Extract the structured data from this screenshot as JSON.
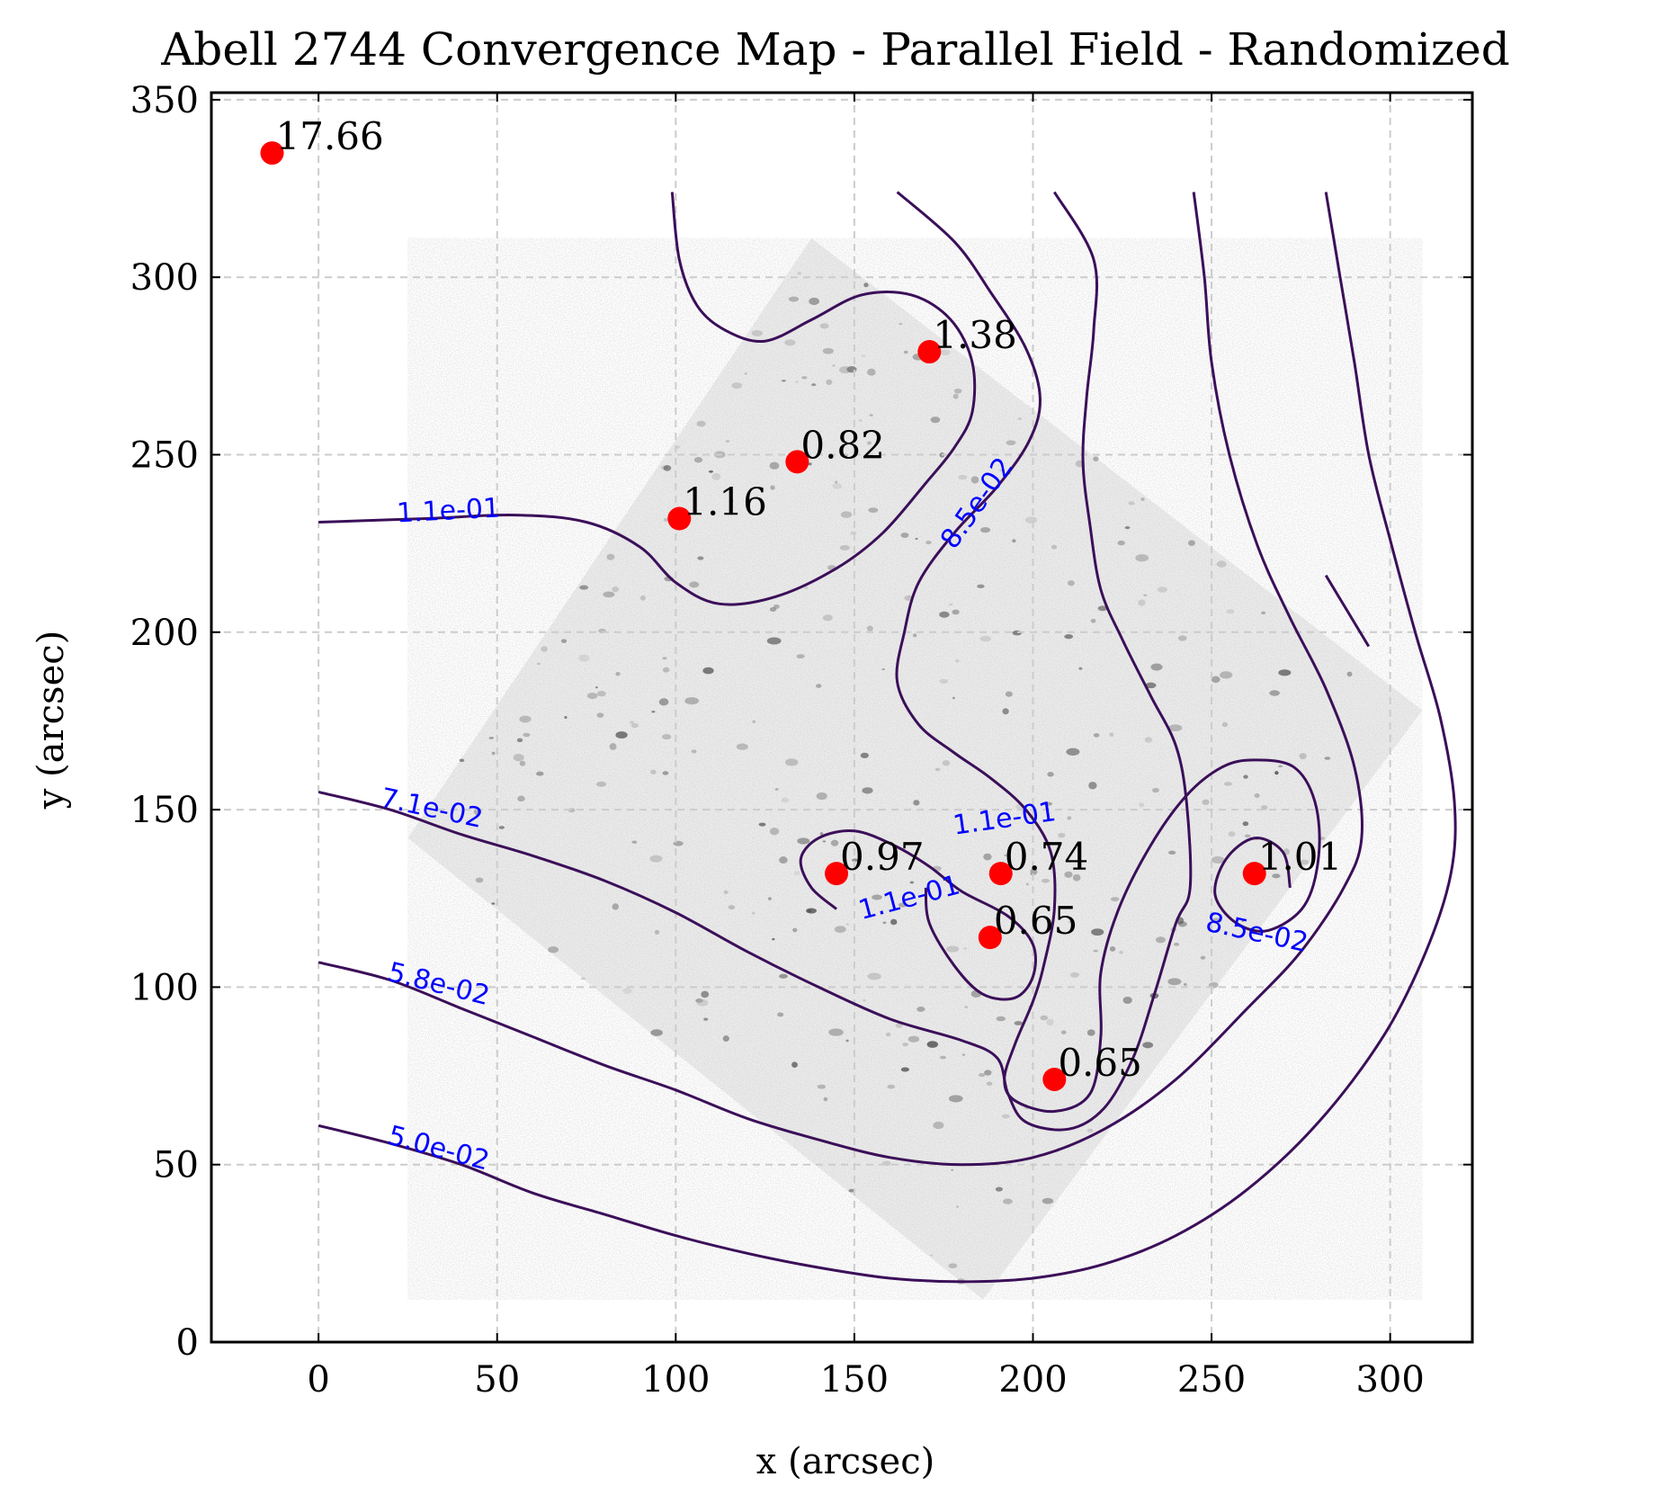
{
  "chart_data": {
    "type": "contour",
    "title": "Abell 2744 Convergence Map - Parallel Field - Randomized",
    "xlabel": "x (arcsec)",
    "ylabel": "y (arcsec)",
    "xlim": [
      -30,
      323
    ],
    "ylim": [
      0,
      352
    ],
    "xticks": [
      0,
      50,
      100,
      150,
      200,
      250,
      300
    ],
    "yticks": [
      0,
      50,
      100,
      150,
      200,
      250,
      300,
      350
    ],
    "grid": true,
    "background": "Hubble field image (grayscale), rotated square footprint",
    "colors": {
      "contour": "#3b0f59",
      "contour_label": "#0000ff",
      "point": "#ff0000",
      "grid": "#cccccc"
    },
    "points": [
      {
        "x": -13,
        "y": 335,
        "label": "17.66"
      },
      {
        "x": 171,
        "y": 279,
        "label": "1.38"
      },
      {
        "x": 134,
        "y": 248,
        "label": "0.82"
      },
      {
        "x": 101,
        "y": 232,
        "label": "1.16"
      },
      {
        "x": 145,
        "y": 132,
        "label": "0.97"
      },
      {
        "x": 191,
        "y": 132,
        "label": "0.74"
      },
      {
        "x": 188,
        "y": 114,
        "label": "0.65"
      },
      {
        "x": 262,
        "y": 132,
        "label": "1.01"
      },
      {
        "x": 206,
        "y": 74,
        "label": "0.65"
      }
    ],
    "contours": [
      {
        "level": "1.1e-01",
        "path": [
          [
            0,
            231
          ],
          [
            30,
            232
          ],
          [
            55,
            233
          ],
          [
            75,
            231
          ],
          [
            90,
            224
          ],
          [
            100,
            214
          ],
          [
            112,
            208
          ],
          [
            128,
            210
          ],
          [
            145,
            218
          ],
          [
            158,
            228
          ],
          [
            170,
            242
          ],
          [
            178,
            252
          ],
          [
            183,
            262
          ],
          [
            183,
            276
          ],
          [
            177,
            288
          ],
          [
            166,
            295
          ],
          [
            152,
            295
          ],
          [
            138,
            288
          ],
          [
            125,
            282
          ],
          [
            114,
            285
          ],
          [
            106,
            292
          ],
          [
            101,
            305
          ],
          [
            99,
            324
          ]
        ]
      },
      {
        "level": "1.1e-01",
        "path": [
          [
            145,
            122
          ],
          [
            138,
            128
          ],
          [
            135,
            136
          ],
          [
            140,
            142
          ],
          [
            150,
            144
          ],
          [
            161,
            140
          ],
          [
            171,
            134
          ],
          [
            180,
            127
          ],
          [
            193,
            120
          ],
          [
            200,
            112
          ],
          [
            200,
            103
          ],
          [
            195,
            97
          ],
          [
            186,
            98
          ],
          [
            178,
            106
          ],
          [
            171,
            118
          ],
          [
            170,
            128
          ]
        ]
      },
      {
        "level": "8.5e-02",
        "path": [
          [
            162,
            324
          ],
          [
            178,
            310
          ],
          [
            188,
            296
          ],
          [
            198,
            280
          ],
          [
            202,
            266
          ],
          [
            199,
            254
          ],
          [
            190,
            241
          ],
          [
            178,
            228
          ],
          [
            168,
            214
          ],
          [
            164,
            200
          ],
          [
            162,
            186
          ],
          [
            168,
            174
          ],
          [
            178,
            166
          ],
          [
            188,
            159
          ],
          [
            198,
            150
          ],
          [
            205,
            138
          ],
          [
            206,
            122
          ],
          [
            203,
            106
          ],
          [
            200,
            96
          ],
          [
            195,
            84
          ],
          [
            192,
            74
          ],
          [
            195,
            68
          ],
          [
            206,
            65
          ],
          [
            216,
            70
          ],
          [
            219,
            86
          ],
          [
            219,
            104
          ],
          [
            224,
            122
          ],
          [
            233,
            140
          ],
          [
            243,
            154
          ],
          [
            253,
            162
          ],
          [
            262,
            164
          ],
          [
            273,
            162
          ],
          [
            279,
            152
          ],
          [
            280,
            137
          ],
          [
            276,
            123
          ],
          [
            266,
            116
          ],
          [
            257,
            118
          ],
          [
            251,
            126
          ],
          [
            254,
            136
          ],
          [
            262,
            142
          ],
          [
            270,
            138
          ],
          [
            272,
            128
          ]
        ]
      },
      {
        "level": "7.1e-02",
        "path": [
          [
            0,
            155
          ],
          [
            20,
            150
          ],
          [
            40,
            143
          ],
          [
            60,
            137
          ],
          [
            80,
            130
          ],
          [
            100,
            121
          ],
          [
            120,
            110
          ],
          [
            140,
            100
          ],
          [
            160,
            91
          ],
          [
            180,
            85
          ],
          [
            190,
            80
          ],
          [
            193,
            70
          ],
          [
            198,
            62
          ],
          [
            210,
            60
          ],
          [
            220,
            66
          ],
          [
            228,
            80
          ],
          [
            234,
            98
          ],
          [
            240,
            118
          ],
          [
            244,
            128
          ],
          [
            243,
            152
          ],
          [
            240,
            168
          ],
          [
            233,
            182
          ],
          [
            225,
            198
          ],
          [
            219,
            212
          ],
          [
            216,
            230
          ],
          [
            214,
            248
          ],
          [
            215,
            266
          ],
          [
            217,
            285
          ],
          [
            217,
            305
          ],
          [
            206,
            324
          ]
        ]
      },
      {
        "level": "5.8e-02",
        "path": [
          [
            0,
            107
          ],
          [
            20,
            102
          ],
          [
            40,
            94
          ],
          [
            60,
            86
          ],
          [
            80,
            78
          ],
          [
            100,
            71
          ],
          [
            120,
            63
          ],
          [
            140,
            57
          ],
          [
            160,
            52
          ],
          [
            180,
            50
          ],
          [
            200,
            52
          ],
          [
            220,
            60
          ],
          [
            240,
            74
          ],
          [
            260,
            94
          ],
          [
            275,
            110
          ],
          [
            287,
            128
          ],
          [
            292,
            142
          ],
          [
            290,
            162
          ],
          [
            282,
            184
          ],
          [
            272,
            204
          ],
          [
            263,
            224
          ],
          [
            255,
            250
          ],
          [
            250,
            276
          ],
          [
            248,
            300
          ],
          [
            245,
            324
          ]
        ]
      },
      {
        "level": "5.0e-02",
        "path": [
          [
            0,
            61
          ],
          [
            20,
            56
          ],
          [
            40,
            50
          ],
          [
            60,
            42
          ],
          [
            80,
            36
          ],
          [
            100,
            30
          ],
          [
            120,
            25
          ],
          [
            140,
            21
          ],
          [
            160,
            18
          ],
          [
            180,
            17
          ],
          [
            200,
            18
          ],
          [
            220,
            22
          ],
          [
            240,
            30
          ],
          [
            260,
            43
          ],
          [
            280,
            62
          ],
          [
            298,
            86
          ],
          [
            310,
            110
          ],
          [
            317,
            132
          ],
          [
            318,
            152
          ],
          [
            314,
            176
          ],
          [
            307,
            200
          ],
          [
            300,
            226
          ],
          [
            294,
            250
          ],
          [
            290,
            276
          ],
          [
            286,
            300
          ],
          [
            282,
            324
          ]
        ]
      },
      {
        "level": "8.5e-02",
        "path": [
          [
            294,
            196
          ],
          [
            288,
            206
          ],
          [
            282,
            216
          ]
        ]
      }
    ],
    "contour_labels": [
      {
        "text": "1.1e-01",
        "x": 22,
        "y": 231,
        "angle": -3
      },
      {
        "text": "8.5e-02",
        "x": 178,
        "y": 223,
        "angle": -55
      },
      {
        "text": "1.1e-01",
        "x": 178,
        "y": 143,
        "angle": -8
      },
      {
        "text": "1.1e-01",
        "x": 152,
        "y": 119,
        "angle": -15
      },
      {
        "text": "8.5e-02",
        "x": 248,
        "y": 116,
        "angle": 12
      },
      {
        "text": "7.1e-02",
        "x": 17,
        "y": 151,
        "angle": 12
      },
      {
        "text": "5.8e-02",
        "x": 19,
        "y": 102,
        "angle": 14
      },
      {
        "text": "5.0e-02",
        "x": 19,
        "y": 56,
        "angle": 15
      }
    ],
    "image_footprint": [
      [
        138,
        311
      ],
      [
        309,
        178
      ],
      [
        186,
        12
      ],
      [
        25,
        142
      ]
    ]
  }
}
